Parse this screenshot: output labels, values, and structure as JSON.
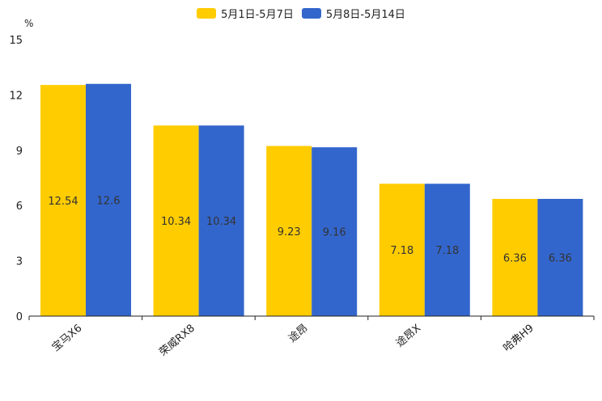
{
  "chart_data": {
    "type": "bar",
    "unit": "%",
    "categories": [
      "宝马X6",
      "荣威RX8",
      "途昂",
      "途昂X",
      "哈弗H9"
    ],
    "series": [
      {
        "name": "5月1日-5月7日",
        "color": "#ffcc00",
        "values": [
          12.54,
          10.34,
          9.23,
          7.18,
          6.36
        ],
        "labels": [
          "12.54",
          "10.34",
          "9.23",
          "7.18",
          "6.36"
        ]
      },
      {
        "name": "5月8日-5月14日",
        "color": "#3366cc",
        "values": [
          12.6,
          10.34,
          9.16,
          7.18,
          6.36
        ],
        "labels": [
          "12.6",
          "10.34",
          "9.16",
          "7.18",
          "6.36"
        ]
      }
    ],
    "ylim": [
      0,
      15
    ],
    "yticks": [
      "0",
      "3",
      "6",
      "9",
      "12",
      "15"
    ],
    "legend_position": "top-center"
  }
}
